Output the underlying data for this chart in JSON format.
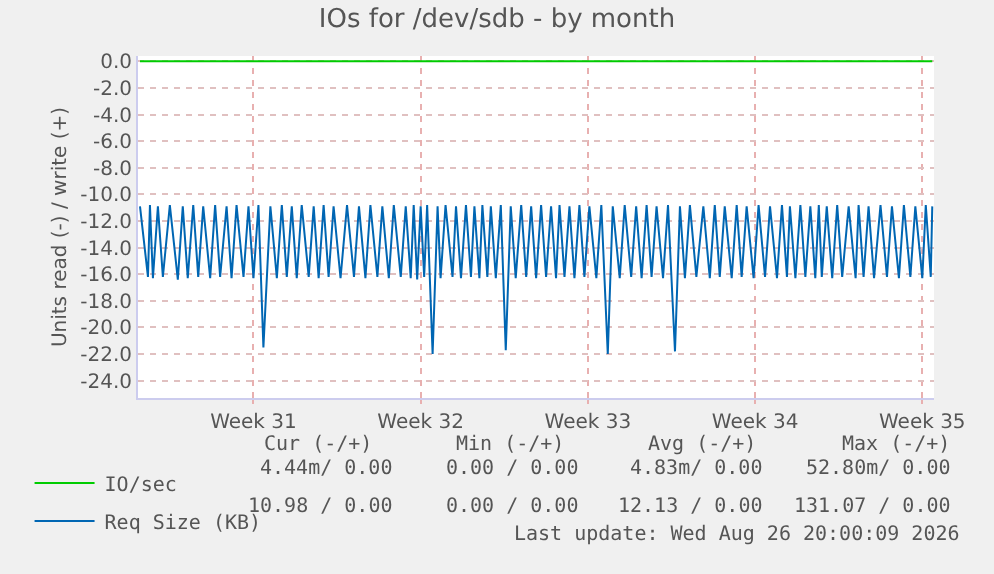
{
  "chart_data": {
    "type": "line",
    "title": "IOs for /dev/sdb - by month",
    "ylabel": "Units read (-) / write (+)",
    "xlim": [
      "2026-07-22T04:00",
      "2026-08-24T11:45"
    ],
    "xticks": [
      {
        "value": "2026-07-27",
        "label": "Week 31"
      },
      {
        "value": "2026-08-03",
        "label": "Week 32"
      },
      {
        "value": "2026-08-10",
        "label": "Week 33"
      },
      {
        "value": "2026-08-17",
        "label": "Week 34"
      },
      {
        "value": "2026-08-24",
        "label": "Week 35"
      }
    ],
    "ylim": [
      -25.3,
      0.4
    ],
    "yticks": [
      {
        "value": 0,
        "label": "0.0"
      },
      {
        "value": -2,
        "label": "-2.0"
      },
      {
        "value": -4,
        "label": "-4.0"
      },
      {
        "value": -6,
        "label": "-6.0"
      },
      {
        "value": -8,
        "label": "-8.0"
      },
      {
        "value": -10,
        "label": "-10.0"
      },
      {
        "value": -12,
        "label": "-12.0"
      },
      {
        "value": -14,
        "label": "-14.0"
      },
      {
        "value": -16,
        "label": "-16.0"
      },
      {
        "value": -18,
        "label": "-18.0"
      },
      {
        "value": -20,
        "label": "-20.0"
      },
      {
        "value": -22,
        "label": "-22.0"
      },
      {
        "value": -24,
        "label": "-24.0"
      }
    ],
    "grid": true,
    "legend": "bottom left",
    "marker": "none",
    "line_style": "solid",
    "series": [
      {
        "name": "IO/sec",
        "color": "#00cc00",
        "x": [
          "2026-07-22T06:00",
          "2026-08-24T10:00"
        ],
        "values": [
          0,
          0
        ]
      },
      {
        "name": "Req Size (KB)",
        "color": "#0066b3",
        "x": [
          "2026-07-22T06:00",
          "2026-07-22T14:00",
          "2026-07-22T16:00",
          "2026-07-22T19:00",
          "2026-07-23T00:00",
          "2026-07-23T05:00",
          "2026-07-23T12:00",
          "2026-07-23T20:00",
          "2026-07-24T01:00",
          "2026-07-24T06:00",
          "2026-07-24T11:30",
          "2026-07-24T16:30",
          "2026-07-24T21:30",
          "2026-07-25T04:30",
          "2026-07-25T09:30",
          "2026-07-25T14:30",
          "2026-07-25T21:00",
          "2026-07-26T02:00",
          "2026-07-26T07:00",
          "2026-07-26T14:00",
          "2026-07-26T19:00",
          "2026-07-27T00:00",
          "2026-07-27T05:00",
          "2026-07-27T10:00",
          "2026-07-27T17:00",
          "2026-07-27T23:30",
          "2026-07-28T04:30",
          "2026-07-28T09:30",
          "2026-07-28T14:30",
          "2026-07-28T19:30",
          "2026-07-29T00:30",
          "2026-07-29T07:30",
          "2026-07-29T12:30",
          "2026-07-29T17:30",
          "2026-07-29T22:30",
          "2026-07-30T03:30",
          "2026-07-30T08:30",
          "2026-07-30T15:30",
          "2026-07-30T22:00",
          "2026-07-31T05:00",
          "2026-07-31T10:00",
          "2026-07-31T16:30",
          "2026-07-31T21:30",
          "2026-08-01T04:30",
          "2026-08-01T09:30",
          "2026-08-01T16:00",
          "2026-08-01T21:00",
          "2026-08-02T04:00",
          "2026-08-02T09:00",
          "2026-08-02T14:00",
          "2026-08-02T17:00",
          "2026-08-02T20:30",
          "2026-08-03T00:00",
          "2026-08-03T03:30",
          "2026-08-03T06:30",
          "2026-08-03T12:00",
          "2026-08-03T17:00",
          "2026-08-03T20:00",
          "2026-08-04T01:00",
          "2026-08-04T08:00",
          "2026-08-04T11:30",
          "2026-08-04T16:30",
          "2026-08-04T21:30",
          "2026-08-05T02:30",
          "2026-08-05T06:00",
          "2026-08-05T11:00",
          "2026-08-05T14:00",
          "2026-08-05T19:00",
          "2026-08-05T22:30",
          "2026-08-06T03:30",
          "2026-08-06T08:30",
          "2026-08-06T13:30",
          "2026-08-06T18:30",
          "2026-08-06T23:30",
          "2026-08-07T05:00",
          "2026-08-07T10:00",
          "2026-08-07T15:00",
          "2026-08-07T20:00",
          "2026-08-08T01:00",
          "2026-08-08T06:00",
          "2026-08-08T11:00",
          "2026-08-08T16:00",
          "2026-08-08T19:30",
          "2026-08-09T00:30",
          "2026-08-09T05:30",
          "2026-08-09T10:30",
          "2026-08-09T15:30",
          "2026-08-09T20:30",
          "2026-08-10T01:30",
          "2026-08-10T08:30",
          "2026-08-10T13:30",
          "2026-08-10T20:00",
          "2026-08-11T01:00",
          "2026-08-11T08:00",
          "2026-08-11T13:00",
          "2026-08-11T19:30",
          "2026-08-12T00:30",
          "2026-08-12T06:00",
          "2026-08-12T11:00",
          "2026-08-12T16:00",
          "2026-08-12T21:00",
          "2026-08-13T03:30",
          "2026-08-13T08:30",
          "2026-08-13T15:30",
          "2026-08-13T20:30",
          "2026-08-14T01:30",
          "2026-08-14T06:30",
          "2026-08-14T13:00",
          "2026-08-14T20:00",
          "2026-08-15T02:30",
          "2026-08-15T07:30",
          "2026-08-15T12:30",
          "2026-08-15T17:30",
          "2026-08-16T00:30",
          "2026-08-16T05:30",
          "2026-08-16T10:30",
          "2026-08-16T15:30",
          "2026-08-16T22:30",
          "2026-08-17T03:30",
          "2026-08-17T10:00",
          "2026-08-17T15:00",
          "2026-08-17T22:00",
          "2026-08-18T03:00",
          "2026-08-18T08:00",
          "2026-08-18T11:00",
          "2026-08-18T16:30",
          "2026-08-18T21:30",
          "2026-08-19T02:30",
          "2026-08-19T07:30",
          "2026-08-19T12:30",
          "2026-08-19T16:00",
          "2026-08-19T19:00",
          "2026-08-20T00:00",
          "2026-08-20T05:30",
          "2026-08-20T10:30",
          "2026-08-20T15:30",
          "2026-08-20T22:00",
          "2026-08-21T05:00",
          "2026-08-21T08:00",
          "2026-08-21T13:00",
          "2026-08-21T18:00",
          "2026-08-21T23:30",
          "2026-08-22T06:00",
          "2026-08-22T12:30",
          "2026-08-22T17:30",
          "2026-08-23T00:30",
          "2026-08-23T05:30",
          "2026-08-23T12:00",
          "2026-08-23T17:00",
          "2026-08-24T00:00",
          "2026-08-24T03:30",
          "2026-08-24T08:30",
          "2026-08-24T10:00"
        ],
        "values": [
          -10.9,
          -16.2,
          -10.8,
          -16.3,
          -10.9,
          -16.2,
          -10.8,
          -16.4,
          -10.9,
          -16.3,
          -10.8,
          -16.2,
          -10.9,
          -16.3,
          -10.8,
          -16.2,
          -10.9,
          -16.3,
          -10.8,
          -16.2,
          -10.9,
          -16.3,
          -10.8,
          -21.5,
          -10.9,
          -16.3,
          -10.8,
          -16.2,
          -10.9,
          -16.3,
          -10.8,
          -16.2,
          -10.9,
          -16.3,
          -10.8,
          -16.2,
          -10.9,
          -16.3,
          -10.8,
          -16.2,
          -10.9,
          -16.3,
          -10.8,
          -16.2,
          -10.9,
          -16.3,
          -10.8,
          -16.2,
          -10.9,
          -16.3,
          -10.8,
          -16.4,
          -10.9,
          -16.2,
          -10.8,
          -22.0,
          -10.9,
          -16.3,
          -10.8,
          -16.2,
          -10.9,
          -16.3,
          -10.8,
          -16.2,
          -10.9,
          -16.3,
          -10.8,
          -16.2,
          -10.9,
          -16.3,
          -10.8,
          -21.7,
          -10.9,
          -16.3,
          -10.8,
          -16.2,
          -10.9,
          -16.3,
          -10.8,
          -16.2,
          -10.9,
          -16.3,
          -10.8,
          -16.2,
          -10.9,
          -16.3,
          -10.8,
          -16.2,
          -10.9,
          -16.3,
          -10.8,
          -22.0,
          -10.9,
          -16.3,
          -10.8,
          -16.2,
          -10.9,
          -16.3,
          -10.8,
          -16.2,
          -10.9,
          -16.3,
          -10.8,
          -21.8,
          -10.9,
          -16.3,
          -10.8,
          -16.2,
          -10.9,
          -16.3,
          -10.8,
          -16.2,
          -10.9,
          -16.3,
          -10.8,
          -16.2,
          -10.9,
          -16.3,
          -10.8,
          -16.2,
          -10.9,
          -16.3,
          -10.8,
          -16.2,
          -10.9,
          -16.3,
          -10.8,
          -16.2,
          -10.9,
          -16.3,
          -10.8,
          -16.2,
          -10.9,
          -16.3,
          -10.8,
          -16.2,
          -10.9,
          -16.3,
          -10.8,
          -16.2,
          -10.9,
          -16.3,
          -10.8,
          -16.2,
          -10.9,
          -16.3,
          -10.8,
          -16.2,
          -10.9,
          -16.3,
          -10.8,
          -16.2,
          -10.9
        ]
      }
    ],
    "annotations": [
      "Cur (-/+)",
      "Min (-/+)",
      "Avg (-/+)",
      "Max (-/+)",
      "4.44m/ 0.00",
      "0.00 / 0.00",
      "4.83m/ 0.00",
      "52.80m/ 0.00",
      "10.98 / 0.00",
      "0.00 / 0.00",
      "12.13 / 0.00",
      "131.07 / 0.00",
      "Last update: Wed Aug 26 20:00:09 2026"
    ]
  }
}
